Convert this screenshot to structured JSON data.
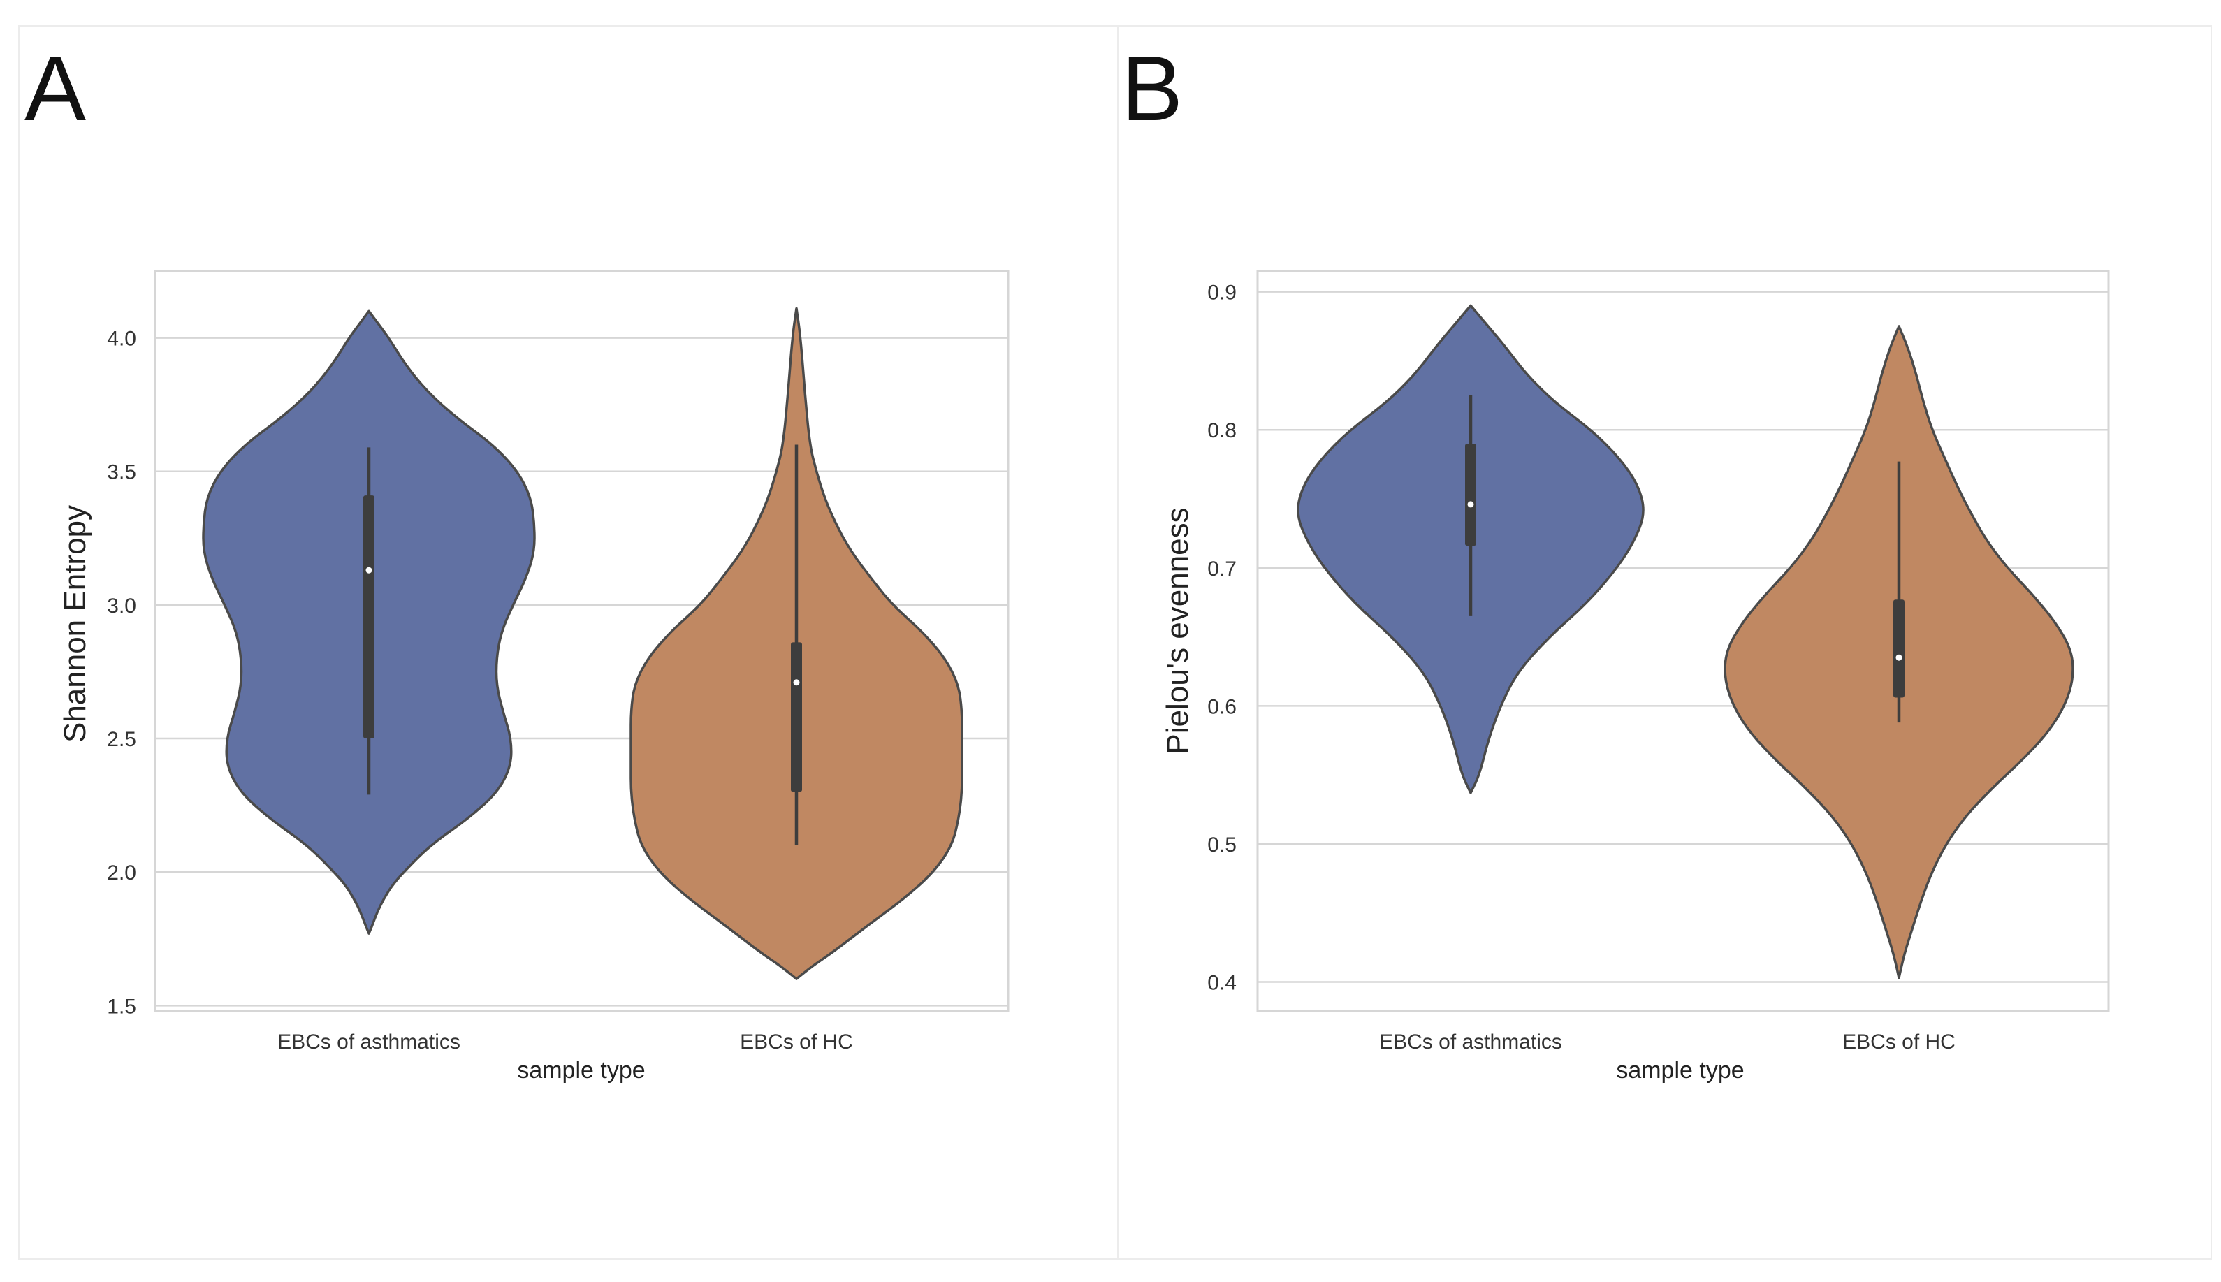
{
  "panels": [
    {
      "letter": "A"
    },
    {
      "letter": "B"
    }
  ],
  "chart_data": [
    {
      "type": "violin",
      "panel": "A",
      "title": "",
      "xlabel": "sample type",
      "ylabel": "Shannon Entropy",
      "categories": [
        "EBCs of asthmatics",
        "EBCs of HC"
      ],
      "ylim": [
        1.48,
        4.25
      ],
      "yticks": [
        1.5,
        2.0,
        2.5,
        3.0,
        3.5,
        4.0
      ],
      "ytick_labels": [
        "1.5",
        "2.0",
        "2.5",
        "3.0",
        "3.5",
        "4.0"
      ],
      "grid": true,
      "colors": [
        "#6171a3",
        "#c08862"
      ],
      "series": [
        {
          "name": "EBCs of asthmatics",
          "box": {
            "q1": 2.5,
            "median": 3.13,
            "q3": 3.41,
            "whisker_low": 2.29,
            "whisker_high": 3.59
          },
          "density": [
            [
              1.77,
              0.0
            ],
            [
              1.8,
              0.02
            ],
            [
              1.85,
              0.05
            ],
            [
              1.9,
              0.09
            ],
            [
              1.95,
              0.14
            ],
            [
              2.0,
              0.21
            ],
            [
              2.1,
              0.37
            ],
            [
              2.2,
              0.6
            ],
            [
              2.3,
              0.78
            ],
            [
              2.4,
              0.86
            ],
            [
              2.5,
              0.86
            ],
            [
              2.6,
              0.81
            ],
            [
              2.7,
              0.77
            ],
            [
              2.8,
              0.77
            ],
            [
              2.9,
              0.8
            ],
            [
              3.0,
              0.87
            ],
            [
              3.1,
              0.95
            ],
            [
              3.2,
              1.0
            ],
            [
              3.3,
              1.0
            ],
            [
              3.4,
              0.98
            ],
            [
              3.5,
              0.9
            ],
            [
              3.6,
              0.75
            ],
            [
              3.7,
              0.53
            ],
            [
              3.8,
              0.35
            ],
            [
              3.9,
              0.22
            ],
            [
              4.0,
              0.12
            ],
            [
              4.05,
              0.06
            ],
            [
              4.1,
              0.0
            ]
          ]
        },
        {
          "name": "EBCs of HC",
          "box": {
            "q1": 2.3,
            "median": 2.71,
            "q3": 2.86,
            "whisker_low": 2.1,
            "whisker_high": 3.6
          },
          "density": [
            [
              1.6,
              0.0
            ],
            [
              1.65,
              0.1
            ],
            [
              1.7,
              0.22
            ],
            [
              1.8,
              0.43
            ],
            [
              1.9,
              0.65
            ],
            [
              2.0,
              0.83
            ],
            [
              2.1,
              0.94
            ],
            [
              2.2,
              0.98
            ],
            [
              2.3,
              1.0
            ],
            [
              2.4,
              1.0
            ],
            [
              2.5,
              1.0
            ],
            [
              2.6,
              1.0
            ],
            [
              2.7,
              0.98
            ],
            [
              2.8,
              0.9
            ],
            [
              2.9,
              0.76
            ],
            [
              3.0,
              0.58
            ],
            [
              3.1,
              0.45
            ],
            [
              3.2,
              0.33
            ],
            [
              3.3,
              0.24
            ],
            [
              3.4,
              0.17
            ],
            [
              3.5,
              0.12
            ],
            [
              3.6,
              0.08
            ],
            [
              3.8,
              0.05
            ],
            [
              4.0,
              0.025
            ],
            [
              4.11,
              0.0
            ]
          ]
        }
      ]
    },
    {
      "type": "violin",
      "panel": "B",
      "title": "",
      "xlabel": "sample type",
      "ylabel": "Pielou's evenness",
      "categories": [
        "EBCs of asthmatics",
        "EBCs of HC"
      ],
      "ylim": [
        0.379,
        0.915
      ],
      "yticks": [
        0.4,
        0.5,
        0.6,
        0.7,
        0.8,
        0.9
      ],
      "ytick_labels": [
        "0.4",
        "0.5",
        "0.6",
        "0.7",
        "0.8",
        "0.9"
      ],
      "grid": true,
      "colors": [
        "#6171a3",
        "#c08862"
      ],
      "series": [
        {
          "name": "EBCs of asthmatics",
          "box": {
            "q1": 0.716,
            "median": 0.746,
            "q3": 0.79,
            "whisker_low": 0.665,
            "whisker_high": 0.825
          },
          "density": [
            [
              0.537,
              0.0
            ],
            [
              0.55,
              0.05
            ],
            [
              0.575,
              0.1
            ],
            [
              0.6,
              0.17
            ],
            [
              0.625,
              0.27
            ],
            [
              0.65,
              0.45
            ],
            [
              0.675,
              0.67
            ],
            [
              0.7,
              0.84
            ],
            [
              0.72,
              0.94
            ],
            [
              0.74,
              1.0
            ],
            [
              0.76,
              0.96
            ],
            [
              0.78,
              0.85
            ],
            [
              0.8,
              0.69
            ],
            [
              0.82,
              0.48
            ],
            [
              0.84,
              0.32
            ],
            [
              0.86,
              0.2
            ],
            [
              0.875,
              0.1
            ],
            [
              0.89,
              0.0
            ]
          ]
        },
        {
          "name": "EBCs of HC",
          "box": {
            "q1": 0.606,
            "median": 0.635,
            "q3": 0.677,
            "whisker_low": 0.588,
            "whisker_high": 0.777
          },
          "density": [
            [
              0.403,
              0.0
            ],
            [
              0.42,
              0.03
            ],
            [
              0.44,
              0.08
            ],
            [
              0.46,
              0.13
            ],
            [
              0.48,
              0.19
            ],
            [
              0.5,
              0.27
            ],
            [
              0.52,
              0.38
            ],
            [
              0.54,
              0.53
            ],
            [
              0.56,
              0.7
            ],
            [
              0.58,
              0.85
            ],
            [
              0.6,
              0.95
            ],
            [
              0.62,
              1.0
            ],
            [
              0.64,
              0.99
            ],
            [
              0.66,
              0.9
            ],
            [
              0.68,
              0.77
            ],
            [
              0.7,
              0.62
            ],
            [
              0.72,
              0.5
            ],
            [
              0.74,
              0.41
            ],
            [
              0.76,
              0.33
            ],
            [
              0.78,
              0.26
            ],
            [
              0.8,
              0.19
            ],
            [
              0.82,
              0.14
            ],
            [
              0.84,
              0.1
            ],
            [
              0.86,
              0.05
            ],
            [
              0.875,
              0.0
            ]
          ]
        }
      ]
    }
  ]
}
